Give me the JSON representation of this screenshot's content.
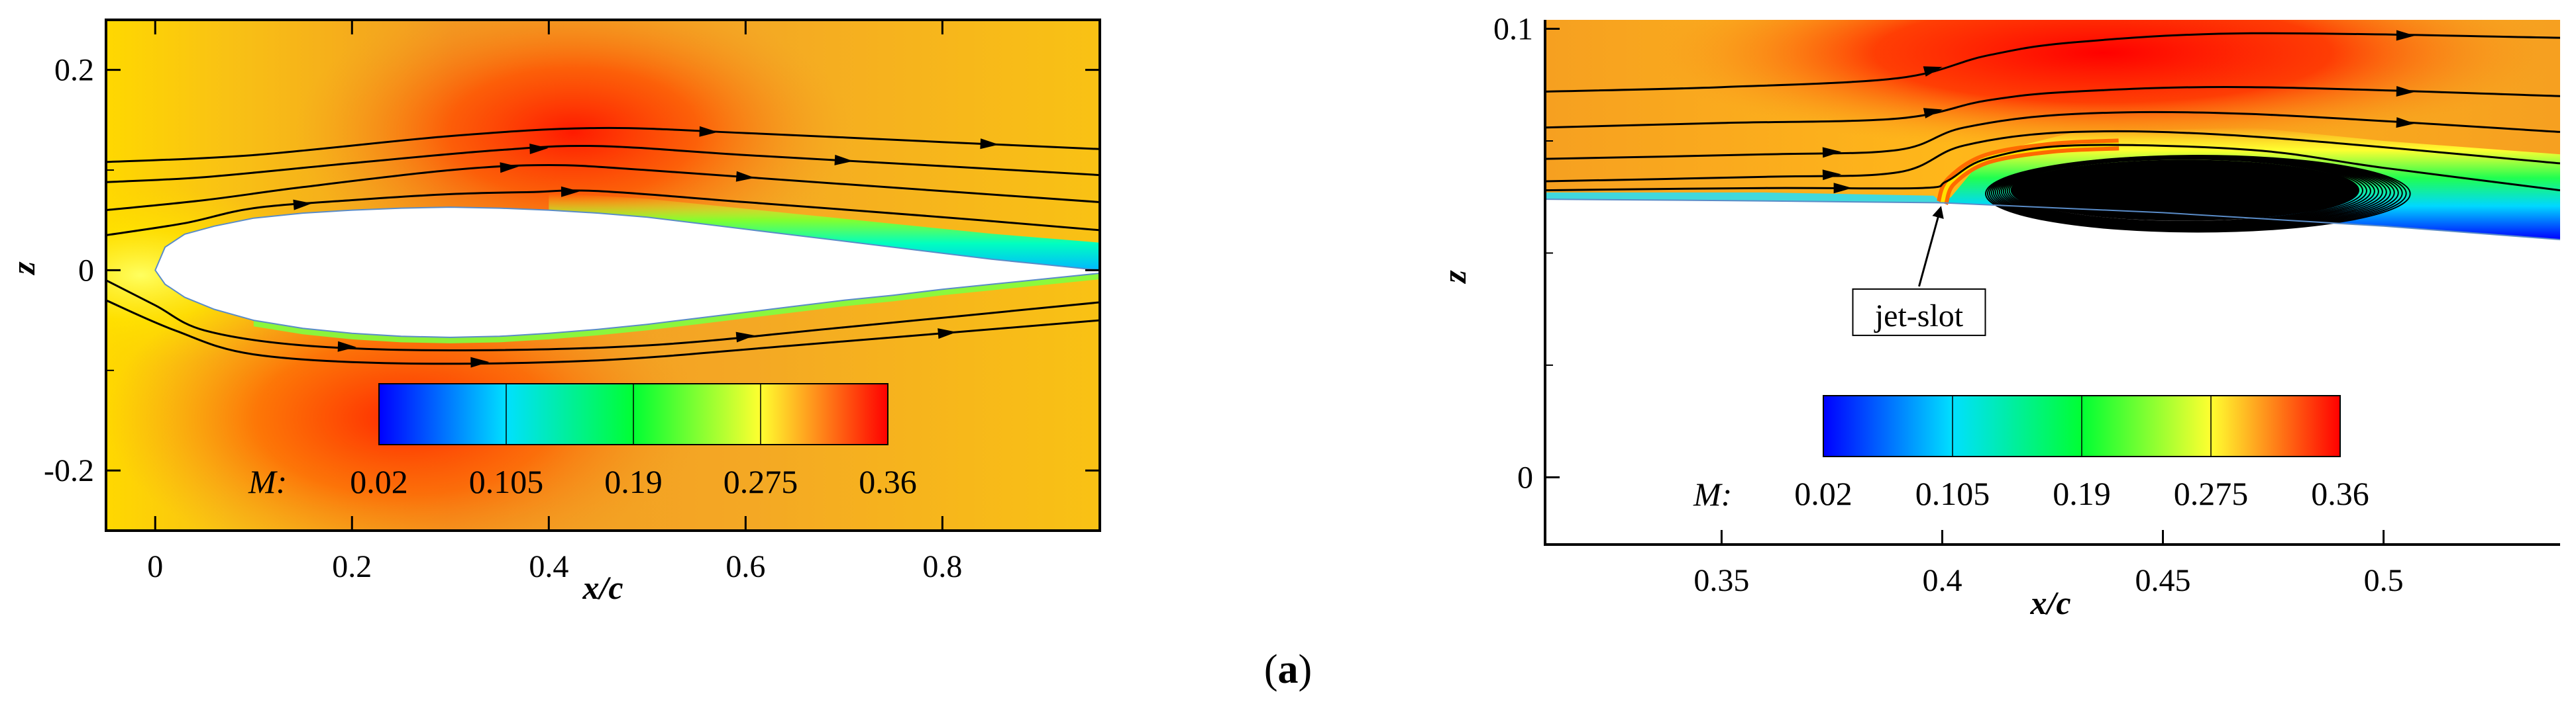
{
  "caption": {
    "open": "(",
    "letter": "a",
    "close": ")"
  },
  "colors": {
    "colormap": [
      "#0000ff",
      "#00e0ff",
      "#00ff33",
      "#ffff30",
      "#ff0000"
    ],
    "background": "#f5a820",
    "streamline": "#000000",
    "airfoil": "#ffffff"
  },
  "chart_data": [
    {
      "type": "contour",
      "xlabel": "x/c",
      "ylabel": "z",
      "xlim": [
        -0.05,
        0.96
      ],
      "ylim": [
        -0.26,
        0.25
      ],
      "xticks": [
        {
          "v": 0,
          "label": "0"
        },
        {
          "v": 0.2,
          "label": "0.2"
        },
        {
          "v": 0.4,
          "label": "0.4"
        },
        {
          "v": 0.6,
          "label": "0.6"
        },
        {
          "v": 0.8,
          "label": "0.8"
        }
      ],
      "yticks": [
        {
          "v": -0.2,
          "label": "-0.2"
        },
        {
          "v": 0,
          "label": "0"
        },
        {
          "v": 0.2,
          "label": "0.2"
        }
      ],
      "colorbar": {
        "variable": "M:",
        "ticks": [
          {
            "v": 0.02,
            "label": "0.02"
          },
          {
            "v": 0.105,
            "label": "0.105"
          },
          {
            "v": 0.19,
            "label": "0.19"
          },
          {
            "v": 0.275,
            "label": "0.275"
          },
          {
            "v": 0.36,
            "label": "0.36"
          }
        ],
        "range": [
          0.02,
          0.36
        ]
      },
      "airfoil_upper": [
        [
          0,
          0
        ],
        [
          0.01,
          0.023
        ],
        [
          0.03,
          0.036
        ],
        [
          0.06,
          0.044
        ],
        [
          0.1,
          0.052
        ],
        [
          0.15,
          0.057
        ],
        [
          0.2,
          0.06
        ],
        [
          0.25,
          0.062
        ],
        [
          0.3,
          0.063
        ],
        [
          0.35,
          0.062
        ],
        [
          0.4,
          0.06
        ],
        [
          0.45,
          0.057
        ],
        [
          0.5,
          0.053
        ],
        [
          0.55,
          0.047
        ],
        [
          0.6,
          0.041
        ],
        [
          0.65,
          0.035
        ],
        [
          0.7,
          0.029
        ],
        [
          0.75,
          0.023
        ],
        [
          0.8,
          0.017
        ],
        [
          0.85,
          0.011
        ],
        [
          0.9,
          0.006
        ],
        [
          0.96,
          0
        ]
      ],
      "airfoil_lower": [
        [
          0,
          0
        ],
        [
          0.01,
          -0.014
        ],
        [
          0.03,
          -0.027
        ],
        [
          0.06,
          -0.039
        ],
        [
          0.1,
          -0.05
        ],
        [
          0.15,
          -0.058
        ],
        [
          0.2,
          -0.063
        ],
        [
          0.25,
          -0.066
        ],
        [
          0.3,
          -0.067
        ],
        [
          0.35,
          -0.066
        ],
        [
          0.4,
          -0.063
        ],
        [
          0.45,
          -0.059
        ],
        [
          0.5,
          -0.054
        ],
        [
          0.55,
          -0.048
        ],
        [
          0.6,
          -0.042
        ],
        [
          0.65,
          -0.036
        ],
        [
          0.7,
          -0.03
        ],
        [
          0.75,
          -0.025
        ],
        [
          0.8,
          -0.019
        ],
        [
          0.85,
          -0.014
        ],
        [
          0.9,
          -0.009
        ],
        [
          0.96,
          -0.003
        ]
      ],
      "streamlines": [
        [
          [
            -0.05,
            0.108
          ],
          [
            0.1,
            0.115
          ],
          [
            0.3,
            0.134
          ],
          [
            0.45,
            0.142
          ],
          [
            0.6,
            0.137
          ],
          [
            0.8,
            0.128
          ],
          [
            0.96,
            0.121
          ]
        ],
        [
          [
            -0.05,
            0.088
          ],
          [
            0.05,
            0.093
          ],
          [
            0.2,
            0.107
          ],
          [
            0.35,
            0.12
          ],
          [
            0.45,
            0.124
          ],
          [
            0.6,
            0.115
          ],
          [
            0.8,
            0.104
          ],
          [
            0.96,
            0.095
          ]
        ],
        [
          [
            -0.05,
            0.06
          ],
          [
            0.05,
            0.07
          ],
          [
            0.15,
            0.083
          ],
          [
            0.3,
            0.1
          ],
          [
            0.4,
            0.105
          ],
          [
            0.5,
            0.1
          ],
          [
            0.7,
            0.086
          ],
          [
            0.96,
            0.068
          ]
        ],
        [
          [
            -0.05,
            0.035
          ],
          [
            0.03,
            0.047
          ],
          [
            0.1,
            0.062
          ],
          [
            0.2,
            0.07
          ],
          [
            0.3,
            0.076
          ],
          [
            0.38,
            0.078
          ],
          [
            0.45,
            0.079
          ],
          [
            0.6,
            0.068
          ],
          [
            0.8,
            0.053
          ],
          [
            0.96,
            0.04
          ]
        ],
        [
          [
            -0.05,
            -0.01
          ],
          [
            0,
            -0.035
          ],
          [
            0.05,
            -0.06
          ],
          [
            0.15,
            -0.075
          ],
          [
            0.3,
            -0.08
          ],
          [
            0.5,
            -0.075
          ],
          [
            0.7,
            -0.057
          ],
          [
            0.96,
            -0.032
          ]
        ],
        [
          [
            -0.05,
            -0.03
          ],
          [
            0.02,
            -0.06
          ],
          [
            0.1,
            -0.084
          ],
          [
            0.25,
            -0.093
          ],
          [
            0.45,
            -0.09
          ],
          [
            0.65,
            -0.075
          ],
          [
            0.96,
            -0.05
          ]
        ]
      ],
      "arrows": [
        [
          0,
          3,
          0.75
        ],
        [
          0,
          5,
          0.3
        ],
        [
          1,
          3,
          0.4
        ],
        [
          1,
          5,
          0.5
        ],
        [
          2,
          3,
          0.6
        ],
        [
          2,
          5,
          0.5
        ],
        [
          3,
          2,
          0.5
        ],
        [
          3,
          5,
          0.6
        ],
        [
          4,
          3,
          0.3
        ],
        [
          4,
          5,
          0.5
        ],
        [
          5,
          3,
          0.4
        ],
        [
          5,
          5,
          0.5
        ]
      ]
    },
    {
      "type": "contour",
      "xlabel": "x/c",
      "ylabel": "z",
      "xlim": [
        0.31,
        0.54
      ],
      "ylim": [
        -0.015,
        0.102
      ],
      "xticks": [
        {
          "v": 0.35,
          "label": "0.35"
        },
        {
          "v": 0.4,
          "label": "0.4"
        },
        {
          "v": 0.45,
          "label": "0.45"
        },
        {
          "v": 0.5,
          "label": "0.5"
        }
      ],
      "yticks": [
        {
          "v": 0,
          "label": "0"
        },
        {
          "v": 0.1,
          "label": "0.1"
        }
      ],
      "colorbar": {
        "variable": "M:",
        "ticks": [
          {
            "v": 0.02,
            "label": "0.02"
          },
          {
            "v": 0.105,
            "label": "0.105"
          },
          {
            "v": 0.19,
            "label": "0.19"
          },
          {
            "v": 0.275,
            "label": "0.275"
          },
          {
            "v": 0.36,
            "label": "0.36"
          }
        ],
        "range": [
          0.02,
          0.36
        ]
      },
      "annotation": {
        "text": "jet-slot",
        "x": 0.4,
        "y": 0.061
      },
      "surface_fore": [
        [
          0.31,
          0.062
        ],
        [
          0.35,
          0.0617
        ],
        [
          0.4,
          0.0612
        ]
      ],
      "surface_aft": [
        [
          0.4,
          0.0612
        ],
        [
          0.45,
          0.059
        ],
        [
          0.5,
          0.056
        ],
        [
          0.54,
          0.053
        ]
      ],
      "streamlines": [
        [
          [
            0.31,
            0.086
          ],
          [
            0.35,
            0.087
          ],
          [
            0.39,
            0.089
          ],
          [
            0.41,
            0.094
          ],
          [
            0.43,
            0.097
          ],
          [
            0.47,
            0.099
          ],
          [
            0.54,
            0.098
          ]
        ],
        [
          [
            0.31,
            0.078
          ],
          [
            0.35,
            0.079
          ],
          [
            0.39,
            0.08
          ],
          [
            0.41,
            0.084
          ],
          [
            0.43,
            0.086
          ],
          [
            0.47,
            0.087
          ],
          [
            0.54,
            0.085
          ]
        ],
        [
          [
            0.31,
            0.071
          ],
          [
            0.36,
            0.072
          ],
          [
            0.39,
            0.073
          ],
          [
            0.405,
            0.078
          ],
          [
            0.43,
            0.081
          ],
          [
            0.47,
            0.081
          ],
          [
            0.54,
            0.077
          ]
        ],
        [
          [
            0.31,
            0.066
          ],
          [
            0.36,
            0.067
          ],
          [
            0.39,
            0.068
          ],
          [
            0.405,
            0.074
          ],
          [
            0.43,
            0.077
          ],
          [
            0.47,
            0.076
          ],
          [
            0.54,
            0.07
          ]
        ],
        [
          [
            0.31,
            0.064
          ],
          [
            0.36,
            0.0645
          ],
          [
            0.395,
            0.0645
          ],
          [
            0.401,
            0.066
          ],
          [
            0.41,
            0.071
          ],
          [
            0.43,
            0.074
          ],
          [
            0.47,
            0.073
          ],
          [
            0.5,
            0.069
          ],
          [
            0.54,
            0.064
          ]
        ]
      ],
      "arrows": [
        [
          0,
          2,
          0.4
        ],
        [
          0,
          5,
          0.5
        ],
        [
          1,
          2,
          0.4
        ],
        [
          1,
          5,
          0.5
        ],
        [
          2,
          1,
          0.5
        ],
        [
          2,
          5,
          0.5
        ],
        [
          3,
          1,
          0.5
        ],
        [
          4,
          1,
          0.5
        ]
      ],
      "vortex": {
        "x": 0.455,
        "y": 0.064,
        "rx": 0.048,
        "ry": 0.0085
      }
    }
  ]
}
